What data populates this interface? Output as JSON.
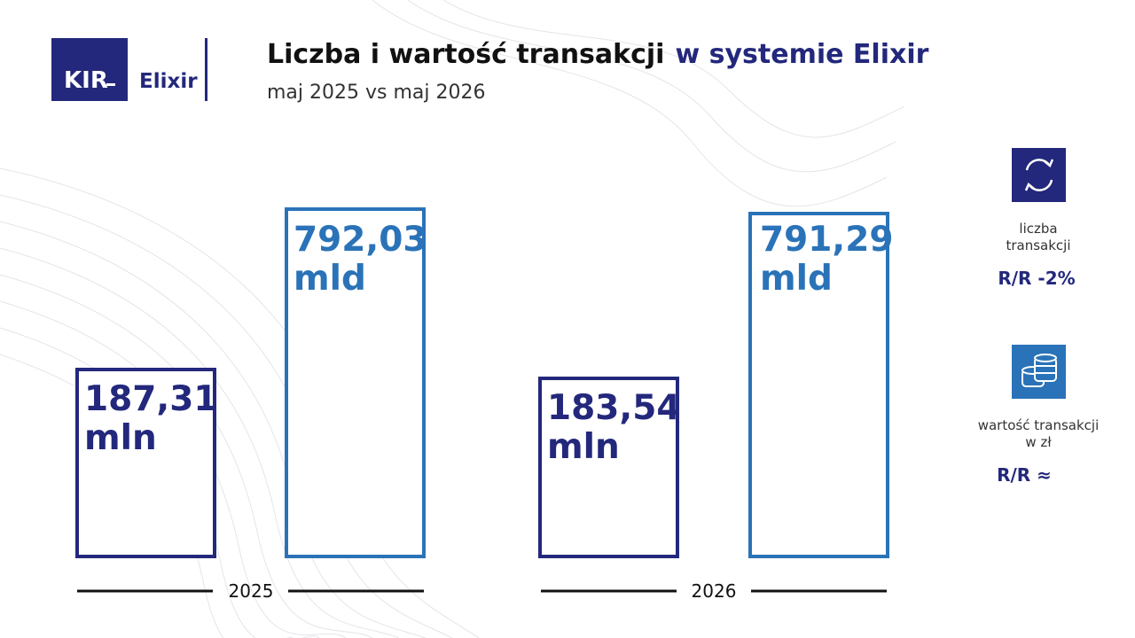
{
  "header": {
    "logo_kir": "KIR",
    "logo_elixir": "Elixir",
    "title": "Liczba i wartość transakcji",
    "title_highlight": "w systemie Elixir",
    "subtitle": "maj 2025 vs maj 2026"
  },
  "groups": [
    {
      "year": "2025",
      "boxes": [
        {
          "lines": [
            "187,31",
            "mln"
          ]
        },
        {
          "lines": [
            "792,03",
            "mld"
          ]
        }
      ]
    },
    {
      "year": "2026",
      "boxes": [
        {
          "lines": [
            "183,54",
            "mln"
          ]
        },
        {
          "lines": [
            "791,29",
            "mld"
          ]
        }
      ]
    }
  ],
  "legend": [
    {
      "lines": [
        "liczba",
        "transakcji"
      ],
      "change": "R/R -2%"
    },
    {
      "lines": [
        "wartość transakcji",
        "w zł"
      ],
      "change": "R/R ≈"
    }
  ]
}
